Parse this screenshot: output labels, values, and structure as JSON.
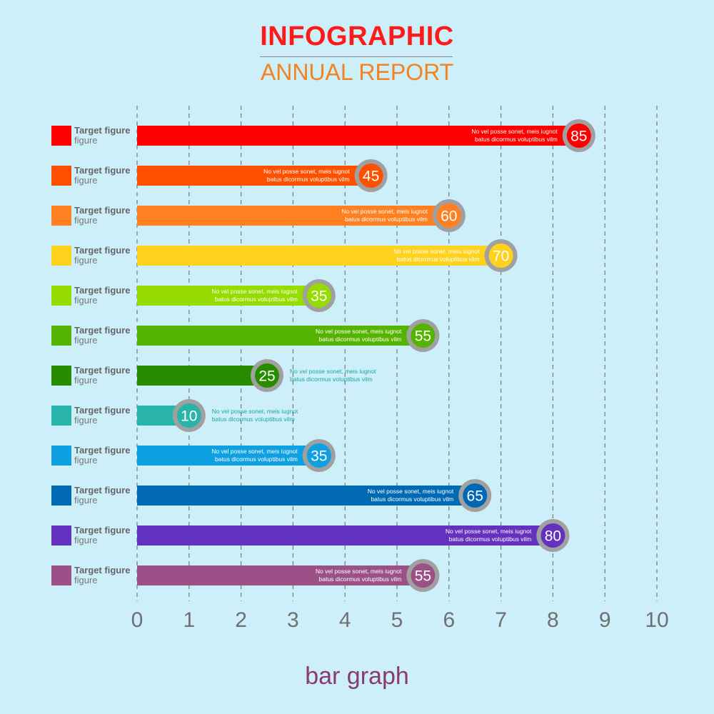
{
  "header": {
    "title": "INFOGRAPHIC",
    "subtitle": "ANNUAL REPORT"
  },
  "footer": {
    "caption": "bar graph"
  },
  "chart_data": {
    "type": "bar",
    "orientation": "horizontal",
    "title": "INFOGRAPHIC",
    "subtitle": "ANNUAL REPORT",
    "caption": "bar graph",
    "xlim": [
      0,
      10
    ],
    "x_ticks": [
      "0",
      "1",
      "2",
      "3",
      "4",
      "5",
      "6",
      "7",
      "8",
      "9",
      "10"
    ],
    "grid": "vertical dashed",
    "row_label_line1": "Target figure",
    "row_label_line2": "figure",
    "note_line1": "No vel posse sonet, meis iugnot",
    "note_line2": "batus dicormus voluptibus vilm",
    "bars": [
      {
        "value": 85,
        "color": "#ff0000"
      },
      {
        "value": 45,
        "color": "#ff5000"
      },
      {
        "value": 60,
        "color": "#ff8020"
      },
      {
        "value": 70,
        "color": "#ffd21e"
      },
      {
        "value": 35,
        "color": "#96dc00"
      },
      {
        "value": 55,
        "color": "#55b400"
      },
      {
        "value": 25,
        "color": "#288c00"
      },
      {
        "value": 10,
        "color": "#28b4aa"
      },
      {
        "value": 35,
        "color": "#0ea0e0"
      },
      {
        "value": 65,
        "color": "#0069b4"
      },
      {
        "value": 80,
        "color": "#6432be"
      },
      {
        "value": 55,
        "color": "#9b5087"
      }
    ]
  }
}
